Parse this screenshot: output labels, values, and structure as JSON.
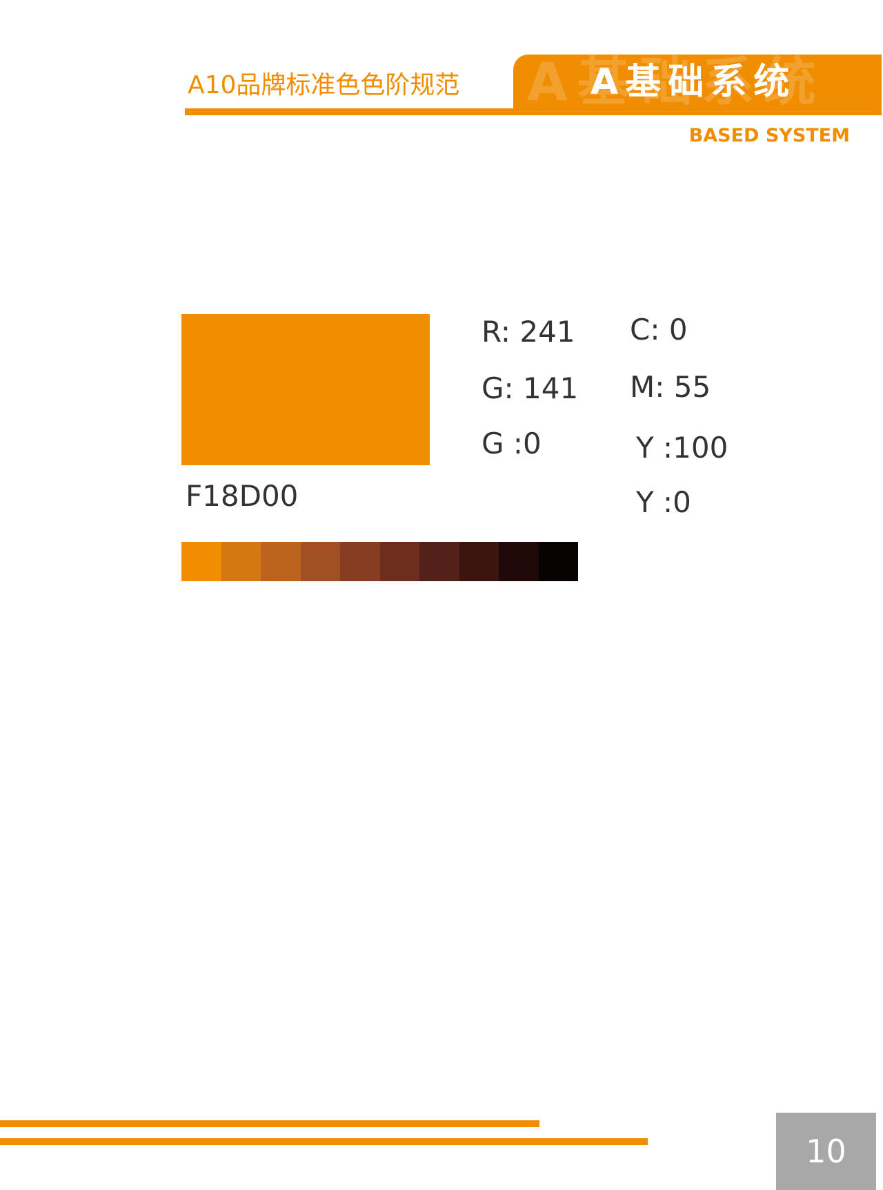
{
  "header": {
    "title": "A10品牌标准色色阶规范",
    "section": "A基础系统",
    "subtitle": "BASED SYSTEM"
  },
  "swatch": {
    "hex": "F18D00",
    "color": "#F18D00",
    "rgb": [
      "R: 241",
      "G: 141",
      "G :0"
    ],
    "cmyk": [
      "C: 0",
      "M: 55",
      "Y :100",
      "Y :0"
    ]
  },
  "scale_colors": [
    "#F18D00",
    "#D47813",
    "#BC641E",
    "#A05024",
    "#873D22",
    "#6E2E1E",
    "#54201A",
    "#3C1511",
    "#1E0808",
    "#080303"
  ],
  "footer": {
    "page": "10"
  }
}
